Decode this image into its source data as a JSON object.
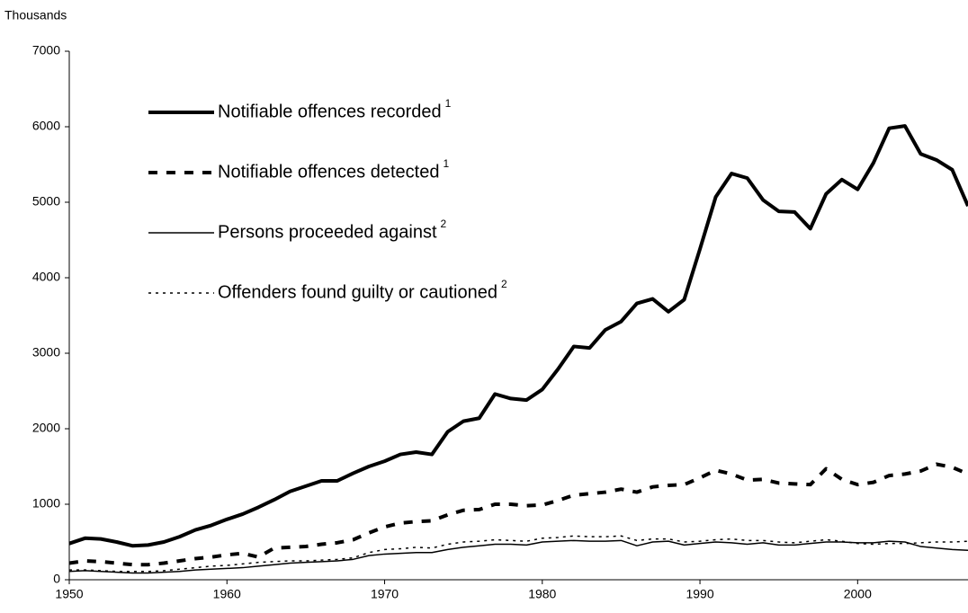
{
  "chart_data": {
    "type": "line",
    "ylabel": "Thousands",
    "x": [
      1950,
      1951,
      1952,
      1953,
      1954,
      1955,
      1956,
      1957,
      1958,
      1959,
      1960,
      1961,
      1962,
      1963,
      1964,
      1965,
      1966,
      1967,
      1968,
      1969,
      1970,
      1971,
      1972,
      1973,
      1974,
      1975,
      1976,
      1977,
      1978,
      1979,
      1980,
      1981,
      1982,
      1983,
      1984,
      1985,
      1986,
      1987,
      1988,
      1989,
      1990,
      1991,
      1992,
      1993,
      1994,
      1995,
      1996,
      1997,
      1998,
      1999,
      2000,
      2001,
      2002,
      2003,
      2004,
      2005,
      2006,
      2007
    ],
    "xlim": [
      1950,
      2007
    ],
    "xticks": [
      1950,
      1960,
      1970,
      1980,
      1990,
      2000
    ],
    "ylim": [
      0,
      7000
    ],
    "yticks": [
      0,
      1000,
      2000,
      3000,
      4000,
      5000,
      6000,
      7000
    ],
    "series": [
      {
        "name": "Notifiable offences recorded",
        "superscript": "1",
        "color": "#000000",
        "width": 4,
        "dash": "none",
        "values": [
          480,
          550,
          540,
          500,
          450,
          460,
          500,
          570,
          660,
          720,
          800,
          870,
          960,
          1060,
          1170,
          1240,
          1310,
          1310,
          1410,
          1500,
          1570,
          1660,
          1690,
          1660,
          1960,
          2100,
          2140,
          2460,
          2400,
          2380,
          2520,
          2790,
          3090,
          3070,
          3310,
          3420,
          3660,
          3720,
          3550,
          3710,
          4380,
          5070,
          5380,
          5320,
          5030,
          4880,
          4870,
          4650,
          5110,
          5300,
          5170,
          5520,
          5980,
          6010,
          5640,
          5560,
          5430,
          4950
        ]
      },
      {
        "name": "Notifiable offences detected",
        "superscript": "1",
        "color": "#000000",
        "width": 4,
        "dash": "10,10",
        "values": [
          220,
          250,
          240,
          220,
          200,
          200,
          220,
          250,
          280,
          300,
          330,
          350,
          300,
          420,
          430,
          440,
          470,
          490,
          530,
          620,
          700,
          750,
          770,
          780,
          860,
          920,
          930,
          1000,
          1000,
          980,
          990,
          1050,
          1120,
          1140,
          1160,
          1200,
          1160,
          1230,
          1250,
          1260,
          1350,
          1450,
          1400,
          1320,
          1330,
          1280,
          1270,
          1260,
          1470,
          1330,
          1260,
          1290,
          1380,
          1400,
          1440,
          1530,
          1490,
          1400
        ]
      },
      {
        "name": "Persons proceeded against",
        "superscript": "2",
        "color": "#000000",
        "width": 1.5,
        "dash": "none",
        "values": [
          110,
          120,
          110,
          100,
          90,
          90,
          100,
          110,
          130,
          140,
          150,
          160,
          180,
          200,
          220,
          230,
          240,
          250,
          270,
          320,
          340,
          350,
          360,
          360,
          400,
          430,
          450,
          470,
          470,
          460,
          500,
          510,
          520,
          510,
          510,
          520,
          450,
          500,
          510,
          460,
          480,
          500,
          490,
          470,
          490,
          460,
          460,
          480,
          500,
          500,
          490,
          490,
          510,
          500,
          440,
          420,
          400,
          390
        ]
      },
      {
        "name": "Offenders found guilty or cautioned",
        "superscript": "2",
        "color": "#000000",
        "width": 1.5,
        "dash": "3,5",
        "values": [
          130,
          130,
          120,
          110,
          110,
          110,
          120,
          140,
          160,
          180,
          190,
          210,
          230,
          240,
          250,
          250,
          260,
          270,
          290,
          360,
          400,
          410,
          430,
          420,
          470,
          500,
          510,
          530,
          520,
          510,
          550,
          560,
          580,
          570,
          570,
          580,
          520,
          540,
          540,
          500,
          510,
          530,
          540,
          520,
          520,
          500,
          490,
          510,
          530,
          510,
          480,
          470,
          480,
          480,
          490,
          500,
          500,
          510
        ]
      }
    ]
  }
}
